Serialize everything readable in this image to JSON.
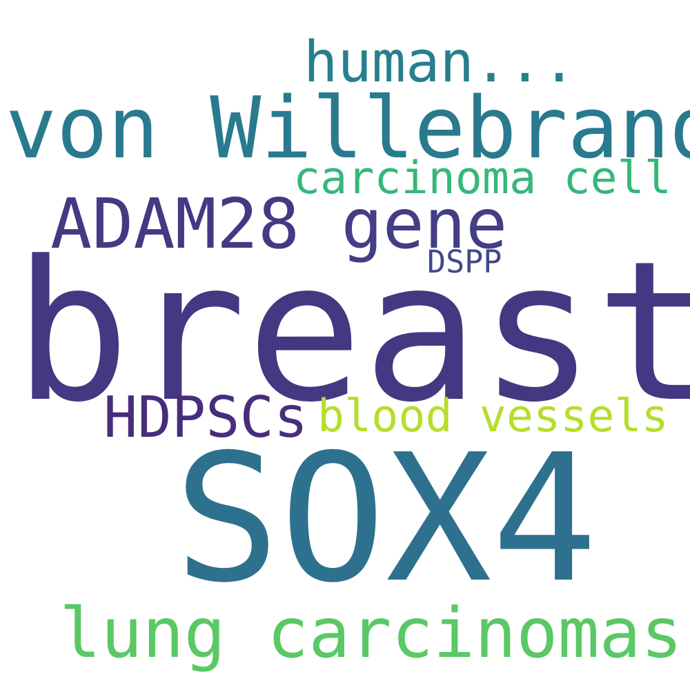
{
  "words": [
    {
      "id": "breast",
      "text": "breast",
      "color": "#453781"
    },
    {
      "id": "sox4",
      "text": "SOX4",
      "color": "#2d718e"
    },
    {
      "id": "von",
      "text": "von Willebrand",
      "color": "#297a8e"
    },
    {
      "id": "lung",
      "text": "lung carcinomas",
      "color": "#5ac864"
    },
    {
      "id": "adam",
      "text": "ADAM28",
      "color": "#443983"
    },
    {
      "id": "gene",
      "text": "gene",
      "color": "#433e85"
    },
    {
      "id": "hdpscs",
      "text": "HDPSCs",
      "color": "#472d7b"
    },
    {
      "id": "blood",
      "text": "blood vessels",
      "color": "#b5de2b"
    },
    {
      "id": "human",
      "text": "human...",
      "color": "#277f8e"
    },
    {
      "id": "carc",
      "text": "carcinoma cell",
      "color": "#35b779"
    },
    {
      "id": "dspp",
      "text": "DSPP",
      "color": "#3e4989"
    }
  ]
}
